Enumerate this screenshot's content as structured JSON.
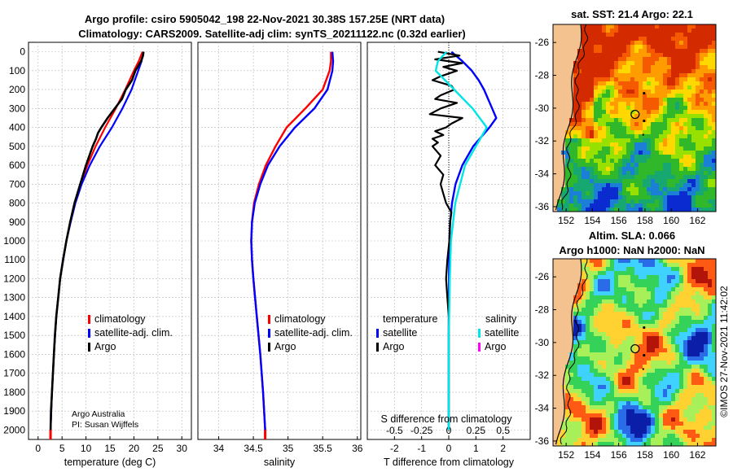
{
  "chart_data": [
    {
      "type": "line",
      "panel": "temperature",
      "title": "Argo profile: csiro 5905042_198 22-Nov-2021 30.38S 157.25E (NRT data)",
      "subtitle": "Climatology: CARS2009. Satellite-adj clim: synTS_20211122.nc (0.32d earlier)",
      "xlabel": "temperature (deg C)",
      "ylabel": "",
      "xlim": [
        -2,
        32
      ],
      "ylim": [
        2050,
        0
      ],
      "xticks": [
        "0",
        "5",
        "10",
        "15",
        "20",
        "25",
        "30"
      ],
      "yticks": [
        "0",
        "100",
        "200",
        "300",
        "400",
        "500",
        "600",
        "700",
        "800",
        "900",
        "1000",
        "1100",
        "1200",
        "1300",
        "1400",
        "1500",
        "1600",
        "1700",
        "1800",
        "1900",
        "2000"
      ],
      "legend": [
        "climatology",
        "satellite-adj. clim.",
        "Argo"
      ],
      "series": [
        {
          "name": "climatology",
          "color": "#ff0000",
          "depth": [
            0,
            50,
            100,
            200,
            300,
            400,
            500,
            600,
            700,
            800,
            900,
            1000,
            1200,
            1400,
            1600,
            1800,
            2000
          ],
          "values": [
            21.8,
            21.0,
            20.0,
            18.2,
            16.2,
            14.0,
            12.0,
            10.3,
            8.9,
            7.7,
            6.7,
            5.9,
            4.6,
            3.8,
            3.3,
            2.9,
            2.6
          ]
        },
        {
          "name": "satellite-adj. clim.",
          "color": "#0000ff",
          "depth": [
            0,
            50,
            100,
            200,
            300,
            400,
            500,
            600,
            700,
            800,
            900,
            1000,
            1200,
            1400,
            1600,
            1800,
            2000
          ],
          "values": [
            22.0,
            21.6,
            20.9,
            19.5,
            17.6,
            15.4,
            12.9,
            10.8,
            9.1,
            7.8,
            6.8,
            5.9,
            4.6,
            3.8,
            3.3,
            2.9,
            2.6
          ]
        },
        {
          "name": "Argo",
          "color": "#000000",
          "depth": [
            0,
            20,
            50,
            100,
            150,
            200,
            250,
            300,
            350,
            400,
            430,
            460,
            500,
            600,
            700,
            800,
            900,
            1000,
            1100,
            1200,
            1300,
            1400,
            1500,
            1600,
            1700,
            1800,
            1900,
            2000
          ],
          "values": [
            22.0,
            21.9,
            21.5,
            20.3,
            19.6,
            18.3,
            17.5,
            16.0,
            14.5,
            13.2,
            12.5,
            12.1,
            11.4,
            10.0,
            8.8,
            7.6,
            6.7,
            5.9,
            5.2,
            4.6,
            4.2,
            3.8,
            3.5,
            3.3,
            3.1,
            2.9,
            2.7,
            2.6
          ]
        }
      ]
    },
    {
      "type": "line",
      "panel": "salinity",
      "xlabel": "salinity",
      "xlim": [
        33.7,
        36.05
      ],
      "ylim": [
        2050,
        0
      ],
      "xticks": [
        "34",
        "34.5",
        "35",
        "35.5",
        "36"
      ],
      "legend": [
        "climatology",
        "satellite-adj. clim.",
        "Argo"
      ],
      "series": [
        {
          "name": "climatology",
          "color": "#ff0000",
          "depth": [
            0,
            50,
            100,
            200,
            300,
            400,
            500,
            600,
            700,
            800,
            900,
            1000,
            1100,
            1200,
            1400,
            1600,
            1800,
            2000
          ],
          "values": [
            35.62,
            35.62,
            35.6,
            35.5,
            35.25,
            34.98,
            34.82,
            34.68,
            34.58,
            34.51,
            34.48,
            34.47,
            34.48,
            34.5,
            34.55,
            34.6,
            34.64,
            34.67
          ]
        },
        {
          "name": "satellite-adj. clim.",
          "color": "#0000ff",
          "depth": [
            0,
            50,
            100,
            200,
            300,
            400,
            500,
            600,
            700,
            800,
            900,
            1000,
            1100,
            1200,
            1400,
            1600,
            1800,
            2000
          ],
          "values": [
            35.64,
            35.65,
            35.64,
            35.57,
            35.38,
            35.1,
            34.88,
            34.71,
            34.6,
            34.52,
            34.48,
            34.47,
            34.48,
            34.5,
            34.55,
            34.6,
            34.64,
            34.67
          ]
        },
        {
          "name": "Argo",
          "color": "#000000",
          "depth": [],
          "values": []
        }
      ]
    },
    {
      "type": "line",
      "panel": "difference",
      "xlabel": "T difference from climatology",
      "xlabel_top": "S difference from climatology",
      "xlim": [
        -3,
        3
      ],
      "ylim": [
        2050,
        0
      ],
      "xticks_T": [
        "-2",
        "-1",
        "0",
        "1",
        "2"
      ],
      "xticks_S": [
        "-0.5",
        "-0.25",
        "0",
        "0.25",
        "0.5"
      ],
      "legend_titles": [
        "temperature",
        "salinity"
      ],
      "legend": [
        "satellite",
        "Argo",
        "satellite",
        "Argo"
      ],
      "series": [
        {
          "name": "temperature satellite",
          "color": "#0000ff",
          "depth": [
            0,
            50,
            100,
            150,
            200,
            300,
            350,
            400,
            500,
            600,
            700,
            800,
            900,
            1000,
            1200,
            1500,
            2000
          ],
          "values": [
            0.1,
            0.5,
            0.85,
            1.1,
            1.3,
            1.6,
            1.75,
            1.5,
            0.9,
            0.5,
            0.25,
            0.12,
            0.05,
            0.02,
            0.01,
            0.0,
            0.0
          ]
        },
        {
          "name": "temperature Argo",
          "color": "#000000",
          "depth": [
            0,
            20,
            40,
            60,
            80,
            100,
            130,
            150,
            180,
            200,
            230,
            250,
            270,
            300,
            330,
            350,
            380,
            400,
            420,
            440,
            460,
            480,
            500,
            550,
            600,
            650,
            700,
            750,
            800,
            850,
            900,
            1000,
            1100,
            1200,
            1300,
            1400,
            1500,
            1600,
            1800,
            2000
          ],
          "values": [
            -0.4,
            0.4,
            -0.5,
            0.5,
            -0.2,
            0.3,
            -0.3,
            -0.6,
            0.1,
            0.2,
            -0.3,
            -0.5,
            0.3,
            -0.3,
            -0.7,
            0.5,
            0.1,
            -0.1,
            -0.5,
            -0.2,
            -0.6,
            -0.4,
            -0.6,
            -0.3,
            -0.5,
            -0.2,
            -0.3,
            -0.2,
            -0.1,
            0.1,
            0.05,
            0.02,
            -0.05,
            -0.1,
            -0.05,
            0.0,
            0.0,
            0.0,
            0.0,
            0.0
          ]
        },
        {
          "name": "salinity satellite",
          "color": "#00e5e5",
          "depth": [
            0,
            50,
            100,
            200,
            300,
            400,
            500,
            600,
            800,
            1000,
            1200,
            1500,
            2000
          ],
          "values": [
            -0.02,
            -0.1,
            -0.12,
            0.05,
            0.22,
            0.35,
            0.25,
            0.15,
            0.06,
            0.02,
            0.01,
            0.0,
            0.0
          ]
        },
        {
          "name": "salinity Argo",
          "color": "#ff00ff",
          "depth": [],
          "values": []
        }
      ]
    },
    {
      "type": "heatmap",
      "panel": "sst-map",
      "title": "sat. SST: 21.4 Argo: 22.1",
      "xticks": [
        "152",
        "154",
        "156",
        "158",
        "160",
        "162"
      ],
      "yticks": [
        "-26",
        "-28",
        "-30",
        "-32",
        "-34",
        "-36"
      ],
      "xlim": [
        151,
        163.4
      ],
      "ylim": [
        -36.3,
        -24.9
      ],
      "argo_position": [
        157.25,
        -30.38
      ]
    },
    {
      "type": "heatmap",
      "panel": "sla-map",
      "title": "Altim. SLA: 0.066",
      "subtitle": "Argo h1000: NaN h2000: NaN",
      "xticks": [
        "152",
        "154",
        "156",
        "158",
        "160",
        "162"
      ],
      "yticks": [
        "-26",
        "-28",
        "-30",
        "-32",
        "-34",
        "-36"
      ],
      "xlim": [
        151,
        163.4
      ],
      "ylim": [
        -36.3,
        -24.9
      ],
      "argo_position": [
        157.25,
        -30.38
      ]
    }
  ],
  "annotations": {
    "institution": "Argo Australia",
    "pi": "PI: Susan Wijffels",
    "timestamp": "©IMOS 27-Nov-2021 11:42:02"
  },
  "colors": {
    "climatology": "#ff0000",
    "satellite": "#0000ff",
    "argo": "#000000",
    "sal_satellite": "#00e5e5",
    "sal_argo": "#ff00ff",
    "land": "#f4c28e"
  }
}
